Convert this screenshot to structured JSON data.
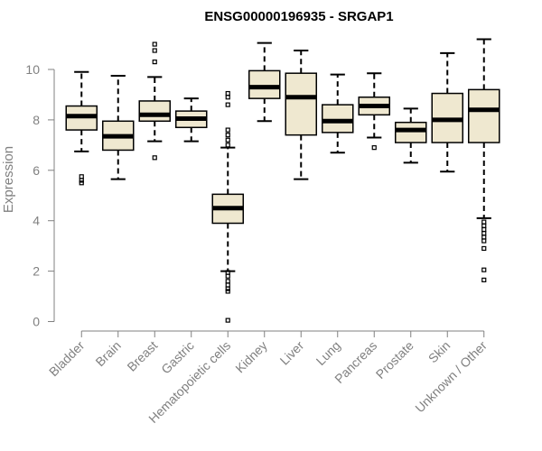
{
  "chart_data": {
    "type": "boxplot",
    "title": "ENSG00000196935 - SRGAP1",
    "xlabel": "",
    "ylabel": "Expression",
    "ylim": [
      0,
      11.2
    ],
    "yticks": [
      0,
      2,
      4,
      6,
      8,
      10
    ],
    "box_color": "#EFE8D0",
    "categories": [
      "Bladder",
      "Brain",
      "Breast",
      "Gastric",
      "Hematopoietic cells",
      "Kidney",
      "Liver",
      "Lung",
      "Pancreas",
      "Prostate",
      "Skin",
      "Unknown / Other"
    ],
    "boxes": [
      {
        "min": 6.75,
        "q1": 7.6,
        "median": 8.15,
        "q3": 8.55,
        "max": 9.9,
        "outliers": [
          5.5,
          5.6,
          5.75
        ]
      },
      {
        "min": 5.65,
        "q1": 6.8,
        "median": 7.35,
        "q3": 7.95,
        "max": 9.75,
        "outliers": []
      },
      {
        "min": 7.15,
        "q1": 7.95,
        "median": 8.2,
        "q3": 8.75,
        "max": 9.7,
        "outliers": [
          6.5,
          10.3,
          10.75,
          11.0
        ]
      },
      {
        "min": 7.15,
        "q1": 7.7,
        "median": 8.05,
        "q3": 8.35,
        "max": 8.85,
        "outliers": []
      },
      {
        "min": 2.0,
        "q1": 3.9,
        "median": 4.5,
        "q3": 5.05,
        "max": 6.9,
        "outliers": [
          0.05,
          1.2,
          1.3,
          1.45,
          1.6,
          1.8,
          1.95,
          7.0,
          7.2,
          7.4,
          7.6,
          8.6,
          8.9,
          9.05
        ]
      },
      {
        "min": 7.95,
        "q1": 8.85,
        "median": 9.3,
        "q3": 9.95,
        "max": 11.05,
        "outliers": []
      },
      {
        "min": 5.65,
        "q1": 7.4,
        "median": 8.9,
        "q3": 9.85,
        "max": 10.75,
        "outliers": []
      },
      {
        "min": 6.7,
        "q1": 7.5,
        "median": 7.95,
        "q3": 8.6,
        "max": 9.8,
        "outliers": []
      },
      {
        "min": 7.3,
        "q1": 8.2,
        "median": 8.55,
        "q3": 8.9,
        "max": 9.85,
        "outliers": [
          6.9
        ]
      },
      {
        "min": 6.3,
        "q1": 7.1,
        "median": 7.6,
        "q3": 7.9,
        "max": 8.45,
        "outliers": []
      },
      {
        "min": 5.95,
        "q1": 7.1,
        "median": 8.0,
        "q3": 9.05,
        "max": 10.65,
        "outliers": []
      },
      {
        "min": 4.1,
        "q1": 7.1,
        "median": 8.4,
        "q3": 9.2,
        "max": 11.2,
        "outliers": [
          1.65,
          2.05,
          2.9,
          3.2,
          3.35,
          3.5,
          3.65,
          3.8,
          3.95
        ]
      }
    ]
  }
}
